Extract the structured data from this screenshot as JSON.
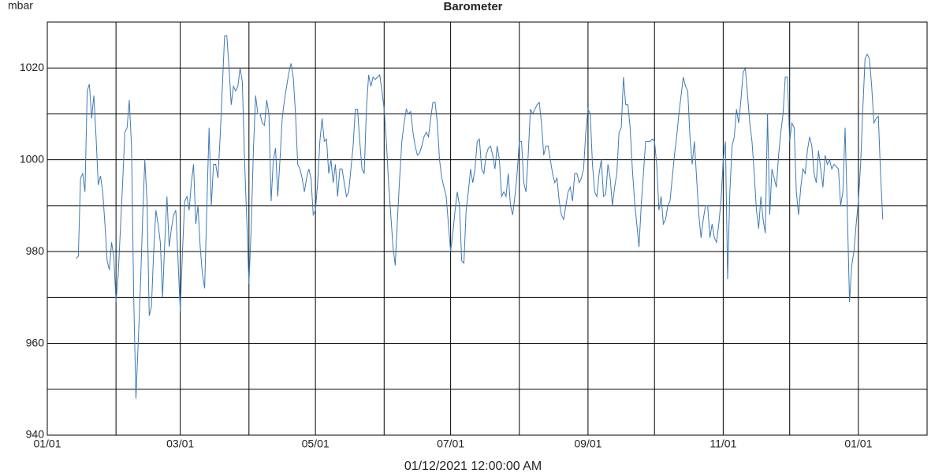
{
  "chart_data": {
    "type": "line",
    "title": "Barometer",
    "y_label": "mbar",
    "x_label": "01/12/2021 12:00:00 AM",
    "color": "#3d7ab5",
    "xlim": [
      0,
      397
    ],
    "ylim": [
      940,
      1030
    ],
    "xticks": [
      {
        "value": 0,
        "label": "01/01"
      },
      {
        "value": 60,
        "label": "03/01"
      },
      {
        "value": 121,
        "label": "05/01"
      },
      {
        "value": 182,
        "label": "07/01"
      },
      {
        "value": 244,
        "label": "09/01"
      },
      {
        "value": 305,
        "label": "11/01"
      },
      {
        "value": 366,
        "label": "01/01"
      }
    ],
    "xgrid": [
      31,
      91,
      152,
      213,
      274,
      335
    ],
    "yticks": [
      940,
      960,
      980,
      1000,
      1020
    ],
    "ygrid": [
      950,
      970,
      990,
      1010
    ],
    "grid": true,
    "x": [
      13,
      14,
      15,
      16,
      17,
      18,
      19,
      20,
      21,
      22,
      23,
      24,
      25,
      26,
      27,
      28,
      29,
      30,
      31,
      32,
      33,
      34,
      35,
      36,
      37,
      38,
      39,
      40,
      41,
      42,
      43,
      44,
      45,
      46,
      47,
      48,
      49,
      50,
      51,
      52,
      53,
      54,
      55,
      56,
      57,
      58,
      59,
      60,
      61,
      62,
      63,
      64,
      65,
      66,
      67,
      68,
      69,
      70,
      71,
      72,
      73,
      74,
      75,
      76,
      77,
      78,
      79,
      80,
      81,
      82,
      83,
      84,
      85,
      86,
      87,
      88,
      89,
      90,
      91,
      92,
      93,
      94,
      95,
      96,
      97,
      98,
      99,
      100,
      101,
      102,
      103,
      104,
      105,
      106,
      107,
      108,
      109,
      110,
      111,
      112,
      113,
      114,
      115,
      116,
      117,
      118,
      119,
      120,
      121,
      122,
      123,
      124,
      125,
      126,
      127,
      128,
      129,
      130,
      131,
      132,
      133,
      134,
      135,
      136,
      137,
      138,
      139,
      140,
      141,
      142,
      143,
      144,
      145,
      146,
      147,
      148,
      149,
      150,
      151,
      152,
      153,
      154,
      155,
      156,
      157,
      158,
      159,
      160,
      161,
      162,
      163,
      164,
      165,
      166,
      167,
      168,
      169,
      170,
      171,
      172,
      173,
      174,
      175,
      176,
      177,
      178,
      179,
      180,
      181,
      182,
      183,
      184,
      185,
      186,
      187,
      188,
      189,
      190,
      191,
      192,
      193,
      194,
      195,
      196,
      197,
      198,
      199,
      200,
      201,
      202,
      203,
      204,
      205,
      206,
      207,
      208,
      209,
      210,
      211,
      212,
      213,
      214,
      215,
      216,
      217,
      218,
      219,
      220,
      221,
      222,
      223,
      224,
      225,
      226,
      227,
      228,
      229,
      230,
      231,
      232,
      233,
      234,
      235,
      236,
      237,
      238,
      239,
      240,
      241,
      242,
      243,
      244,
      245,
      246,
      247,
      248,
      249,
      250,
      251,
      252,
      253,
      254,
      255,
      256,
      257,
      258,
      259,
      260,
      261,
      262,
      263,
      264,
      265,
      266,
      267,
      268,
      269,
      270,
      271,
      272,
      273,
      274,
      275,
      276,
      277,
      278,
      279,
      280,
      281,
      282,
      283,
      284,
      285,
      286,
      287,
      288,
      289,
      290,
      291,
      292,
      293,
      294,
      295,
      296,
      297,
      298,
      299,
      300,
      301,
      302,
      303,
      304,
      305,
      306,
      307,
      308,
      309,
      310,
      311,
      312,
      313,
      314,
      315,
      316,
      317,
      318,
      319,
      320,
      321,
      322,
      323,
      324,
      325,
      326,
      327,
      328,
      329,
      330,
      331,
      332,
      333,
      334,
      335,
      336,
      337,
      338,
      339,
      340,
      341,
      342,
      343,
      344,
      345,
      346,
      347,
      348,
      349,
      350,
      351,
      352,
      353,
      354,
      355,
      356,
      357,
      358,
      359,
      360,
      361,
      362,
      363,
      364,
      365,
      366,
      367,
      368,
      369,
      370,
      371,
      372,
      373,
      374,
      375,
      376,
      377
    ],
    "values": [
      978.5,
      979,
      996,
      997,
      993,
      1015,
      1016.5,
      1009,
      1014,
      1005,
      994.5,
      996.5,
      993,
      986,
      978,
      976,
      982,
      979,
      969,
      975,
      985,
      995,
      1006,
      1007,
      1013,
      1003,
      970,
      948,
      960,
      972,
      987,
      1000,
      991,
      966,
      968,
      980,
      989,
      986,
      982,
      970,
      982,
      992,
      981,
      985,
      988,
      989,
      978,
      967,
      980,
      991,
      992,
      989,
      995,
      999,
      986,
      990,
      981,
      975,
      972,
      990,
      1007,
      990,
      999,
      999,
      996,
      1005,
      1016,
      1027,
      1027,
      1020,
      1012,
      1016,
      1015,
      1016,
      1020,
      1017,
      1000,
      987,
      973,
      985,
      1002,
      1014,
      1010,
      1010,
      1008,
      1007.5,
      1013,
      1010,
      991,
      1000,
      1002.5,
      992,
      1000,
      1009,
      1013,
      1016,
      1019,
      1021,
      1018,
      1010,
      999,
      998,
      996,
      993,
      996,
      998,
      996,
      988,
      989,
      995,
      1004,
      1009,
      1004,
      1004.5,
      997,
      1000,
      995,
      999,
      992,
      998,
      998,
      995,
      992,
      993,
      998,
      1003,
      1011,
      1011,
      1004,
      998,
      997,
      1011,
      1018.5,
      1016,
      1018,
      1017.5,
      1018,
      1018.5,
      1015,
      1011,
      1004,
      995,
      988,
      981,
      977,
      987,
      996,
      1004,
      1008,
      1011,
      1010,
      1010.5,
      1006,
      1003,
      1001,
      1001.5,
      1003,
      1005,
      1006,
      1005,
      1009,
      1012.5,
      1012.5,
      1008,
      1000,
      996,
      994,
      992,
      986,
      980,
      984,
      989,
      993,
      990,
      978,
      977.5,
      989,
      993,
      998,
      995,
      998,
      1004,
      1004.5,
      998,
      997,
      1001,
      1002.5,
      1003,
      1001,
      998,
      1003,
      1000,
      992,
      993,
      992,
      997,
      990,
      988,
      992,
      997,
      1004,
      1004,
      995,
      993,
      1001,
      1011,
      1010,
      1011,
      1012,
      1012.5,
      1008,
      1001,
      1003,
      1003,
      1000,
      997,
      995,
      996,
      991,
      988,
      987,
      990,
      993,
      994,
      991,
      997,
      997,
      995,
      996,
      998,
      1006,
      1011,
      1010,
      999,
      993,
      992,
      997,
      1000,
      992,
      992.5,
      999,
      996,
      990,
      994,
      997,
      1006,
      1007,
      1018,
      1012,
      1012,
      1007,
      998,
      991,
      986,
      981,
      990,
      997,
      1004,
      1004,
      1004,
      1004.5,
      1004,
      999,
      989,
      992,
      986,
      987,
      990,
      991,
      996,
      1001,
      1005,
      1010,
      1014,
      1018,
      1016,
      1015,
      1005,
      999,
      1004,
      996,
      988,
      983,
      987,
      990,
      990,
      983,
      986,
      983,
      982,
      986,
      991,
      1000,
      1004,
      974,
      993,
      1003,
      1005,
      1011,
      1008,
      1013,
      1019,
      1020,
      1014,
      1008,
      1004,
      997,
      989,
      985,
      992,
      987,
      984,
      1010,
      988,
      998,
      996,
      994,
      1001,
      1006,
      1010,
      1018,
      1018,
      1004,
      1008,
      1007,
      993,
      988,
      994,
      998,
      997,
      1002,
      1005,
      1003,
      997,
      995,
      1002,
      998,
      994,
      1001,
      999,
      1000,
      998,
      999,
      998.5,
      998,
      990,
      993,
      1007,
      989,
      969,
      977,
      980,
      986,
      991,
      999,
      1011,
      1022,
      1023,
      1022,
      1016,
      1008,
      1009,
      1009.5,
      997,
      987
    ]
  }
}
